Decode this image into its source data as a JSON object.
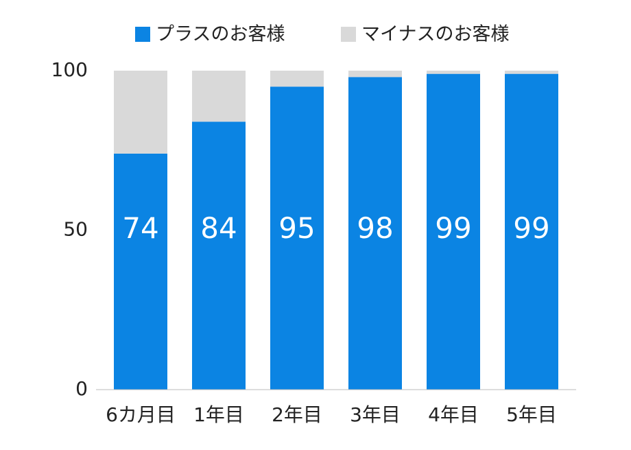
{
  "chart_data": {
    "type": "stacked_bar",
    "categories": [
      "6カ月目",
      "1年目",
      "2年目",
      "3年目",
      "4年目",
      "5年目"
    ],
    "series": [
      {
        "name": "プラスのお客様",
        "color": "#0b84e3",
        "values": [
          74,
          84,
          95,
          98,
          99,
          99
        ],
        "show_labels": true
      },
      {
        "name": "マイナスのお客様",
        "color": "#d9d9d9",
        "values": [
          26,
          16,
          5,
          2,
          1,
          1
        ],
        "show_labels": false
      }
    ],
    "ylim": [
      0,
      100
    ],
    "yticks": [
      0,
      50,
      100
    ],
    "grid": false,
    "legend": "top"
  }
}
